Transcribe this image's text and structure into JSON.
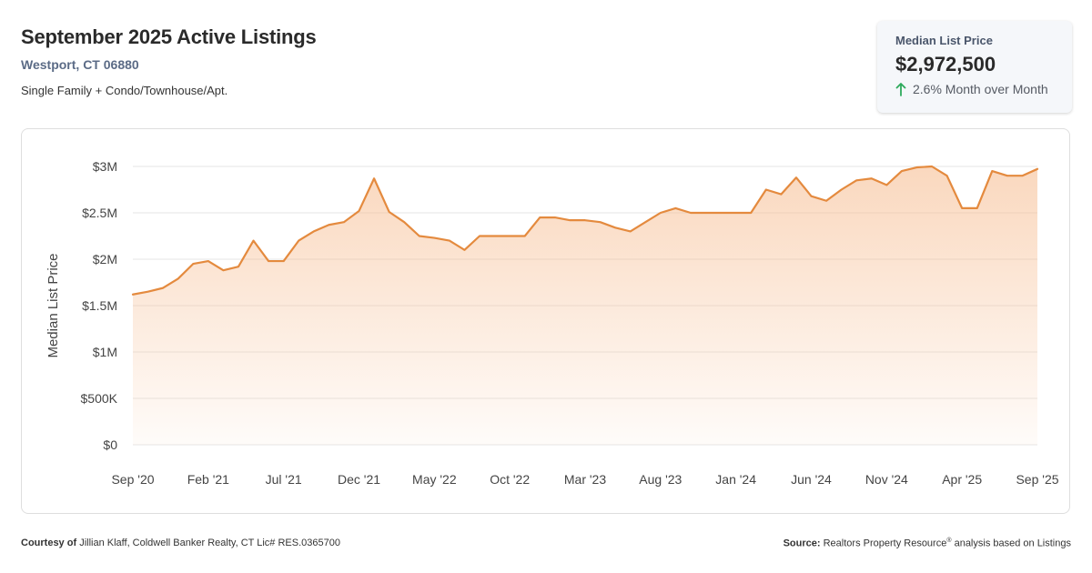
{
  "header": {
    "title": "September 2025 Active Listings",
    "location": "Westport, CT 06880",
    "property_types": "Single Family + Condo/Townhouse/Apt."
  },
  "kpi": {
    "label": "Median List Price",
    "value": "$2,972,500",
    "change": "2.6% Month over Month",
    "direction": "up",
    "arrow_icon": "arrow-up-icon",
    "arrow_color": "#2eaa5c"
  },
  "footer": {
    "courtesy_label": "Courtesy of",
    "courtesy_text": "Jillian Klaff, Coldwell Banker Realty, CT Lic# RES.0365700",
    "source_label": "Source:",
    "source_text_pre": "Realtors Property Resource",
    "source_sup": "®",
    "source_text_post": "analysis based on Listings"
  },
  "chart_data": {
    "type": "area",
    "ylabel": "Median List Price",
    "xlabel": "",
    "ylim": [
      0,
      3000000
    ],
    "grid": true,
    "line_color": "#e48a3e",
    "fill_color": "#f6b889",
    "y_ticks": [
      {
        "value": 0,
        "label": "$0"
      },
      {
        "value": 500000,
        "label": "$500K"
      },
      {
        "value": 1000000,
        "label": "$1M"
      },
      {
        "value": 1500000,
        "label": "$1.5M"
      },
      {
        "value": 2000000,
        "label": "$2M"
      },
      {
        "value": 2500000,
        "label": "$2.5M"
      },
      {
        "value": 3000000,
        "label": "$3M"
      }
    ],
    "x_ticks": [
      "Sep '20",
      "Feb '21",
      "Jul '21",
      "Dec '21",
      "May '22",
      "Oct '22",
      "Mar '23",
      "Aug '23",
      "Jan '24",
      "Jun '24",
      "Nov '24",
      "Apr '25",
      "Sep '25"
    ],
    "x_tick_month_index": [
      0,
      5,
      10,
      15,
      20,
      25,
      30,
      35,
      40,
      45,
      50,
      55,
      60
    ],
    "series": [
      {
        "name": "",
        "x_start": "Sep '20",
        "values": [
          1620000,
          1650000,
          1690000,
          1790000,
          1950000,
          1980000,
          1880000,
          1920000,
          2200000,
          1980000,
          1980000,
          2200000,
          2300000,
          2370000,
          2400000,
          2520000,
          2870000,
          2510000,
          2400000,
          2250000,
          2230000,
          2200000,
          2100000,
          2250000,
          2250000,
          2250000,
          2250000,
          2450000,
          2450000,
          2420000,
          2420000,
          2400000,
          2340000,
          2300000,
          2400000,
          2500000,
          2550000,
          2500000,
          2500000,
          2500000,
          2500000,
          2500000,
          2750000,
          2700000,
          2880000,
          2680000,
          2630000,
          2750000,
          2850000,
          2870000,
          2800000,
          2950000,
          2990000,
          3000000,
          2900000,
          2550000,
          2550000,
          2950000,
          2900000,
          2900000,
          2972500
        ]
      }
    ]
  }
}
